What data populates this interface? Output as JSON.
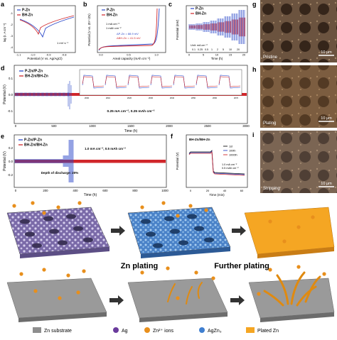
{
  "panels": {
    "a": {
      "letter": "a",
      "ylabel": "log (I, A cm⁻²)",
      "xlabel": "Potential (V vs. Ag/AgCl)",
      "note": "1 mV s⁻¹",
      "xticks": [
        "-1.1",
        "-1.0",
        "-0.9",
        "-0.8"
      ],
      "yticks": [
        "-1",
        "-2",
        "-3",
        "-4"
      ]
    },
    "b": {
      "letter": "b",
      "ylabel": "Potential (V vs. Zn²⁺/Zn)",
      "xlabel": "Areal capacity (mAh cm⁻²)",
      "ann1": "1 mA cm⁻²",
      "ann2": "1 mAh cm⁻²",
      "dp1": "ΔP-Zn = 88.9 mV",
      "dp2": "ΔBH-Zn = 41.5 mV",
      "xticks": [
        "0.0",
        "0.5",
        "1.0"
      ]
    },
    "c": {
      "letter": "c",
      "ylabel": "Potential (mV)",
      "xlabel": "Time (h)",
      "unit": "Unit: mA cm⁻²",
      "xticks": [
        "0",
        "5",
        "10",
        "15",
        "20"
      ],
      "rates": [
        "0.1",
        "0.25",
        "0.5",
        "1",
        "2",
        "5",
        "10",
        "20"
      ]
    },
    "d": {
      "letter": "d",
      "ylabel": "Potential (V)",
      "xlabel": "Time (h)",
      "cond": "0.25 mA cm⁻², 0.25 mAh cm⁻²",
      "xticks": [
        "0",
        "500",
        "1000",
        "1500",
        "2000",
        "2500",
        "3000"
      ],
      "yticks": [
        "0.1",
        "0.0",
        "-0.1"
      ],
      "insetticks": [
        "2600",
        "2610",
        "2620",
        "2630",
        "2640",
        "2650",
        "2660",
        "2670"
      ]
    },
    "e": {
      "letter": "e",
      "ylabel": "Potential (V)",
      "xlabel": "Time (h)",
      "cond1": "1.0 mA cm⁻², 0.5 mAh cm⁻²",
      "dod": "Depth of discharge: 20%",
      "xticks": [
        "0",
        "200",
        "400",
        "600",
        "800",
        "1000"
      ],
      "yticks": [
        "0.2",
        "0.0",
        "-0.2"
      ]
    },
    "f": {
      "letter": "f",
      "ylabel": "Potential (V)",
      "xlabel": "Time (min)",
      "title": "BH-Zn//BH-Zn",
      "cycles": [
        "1st",
        "100th",
        "1000th"
      ],
      "cond1": "1.0 mA cm⁻²",
      "cond2": "0.5 mAh cm⁻²",
      "xticks": [
        "0",
        "20",
        "40",
        "60"
      ]
    },
    "g": {
      "letter": "g",
      "label": "Pristine",
      "scale": "10 μm"
    },
    "h": {
      "letter": "h",
      "label": "Plating",
      "scale": "10 μm"
    },
    "i": {
      "letter": "i",
      "label": "Stripping",
      "scale": "10 μm"
    }
  },
  "legends": {
    "pzn": "P-Zn",
    "bhzn": "BH-Zn",
    "pznsym": "P-Zn//P-Zn",
    "bhznsym": "BH-Zn//BH-Zn"
  },
  "schematic": {
    "step1": "Zn plating",
    "step2": "Further plating"
  },
  "bottom_legend": {
    "substrate": "Zn substrate",
    "ag": "Ag",
    "ions": "Zn²⁺ ions",
    "agzn3": "AgZn₃",
    "plated": "Plated Zn"
  },
  "colors": {
    "pzn": "#2a47c8",
    "bhzn": "#d0262a",
    "micro_bg": "#5c4636",
    "plated": "#f5a623",
    "substrate": "#8e8e8e"
  },
  "chart_data": [
    {
      "type": "line",
      "panel": "a",
      "series": [
        {
          "name": "P-Zn",
          "points": [
            [
              -1.1,
              -1.3
            ],
            [
              -0.96,
              -2.6
            ],
            [
              -0.91,
              -4.3
            ],
            [
              -0.86,
              -2.2
            ],
            [
              -0.78,
              -1.1
            ]
          ]
        },
        {
          "name": "BH-Zn",
          "points": [
            [
              -1.1,
              -1.2
            ],
            [
              -0.99,
              -2.5
            ],
            [
              -0.94,
              -3.8
            ],
            [
              -0.89,
              -2.0
            ],
            [
              -0.78,
              -1.0
            ]
          ]
        }
      ]
    },
    {
      "type": "line",
      "panel": "b",
      "series": [
        {
          "name": "P-Zn"
        },
        {
          "name": "BH-Zn"
        }
      ]
    },
    {
      "type": "line",
      "panel": "c",
      "series": [
        {
          "name": "P-Zn"
        },
        {
          "name": "BH-Zn"
        }
      ]
    },
    {
      "type": "line",
      "panel": "d",
      "series": [
        {
          "name": "P-Zn//P-Zn",
          "x_range": [
            0,
            530
          ]
        },
        {
          "name": "BH-Zn//BH-Zn",
          "x_range": [
            0,
            3000
          ]
        }
      ],
      "xlim": [
        0,
        3000
      ],
      "ylim": [
        -0.15,
        0.15
      ]
    },
    {
      "type": "line",
      "panel": "e",
      "series": [
        {
          "name": "P-Zn//P-Zn",
          "x_range": [
            0,
            390
          ]
        },
        {
          "name": "BH-Zn//BH-Zn",
          "x_range": [
            0,
            1000
          ]
        }
      ],
      "xlim": [
        0,
        1000
      ],
      "ylim": [
        -0.3,
        0.3
      ]
    },
    {
      "type": "line",
      "panel": "f",
      "series": [
        {
          "name": "1st"
        },
        {
          "name": "100th"
        },
        {
          "name": "1000th"
        }
      ],
      "xlim": [
        0,
        60
      ]
    }
  ]
}
